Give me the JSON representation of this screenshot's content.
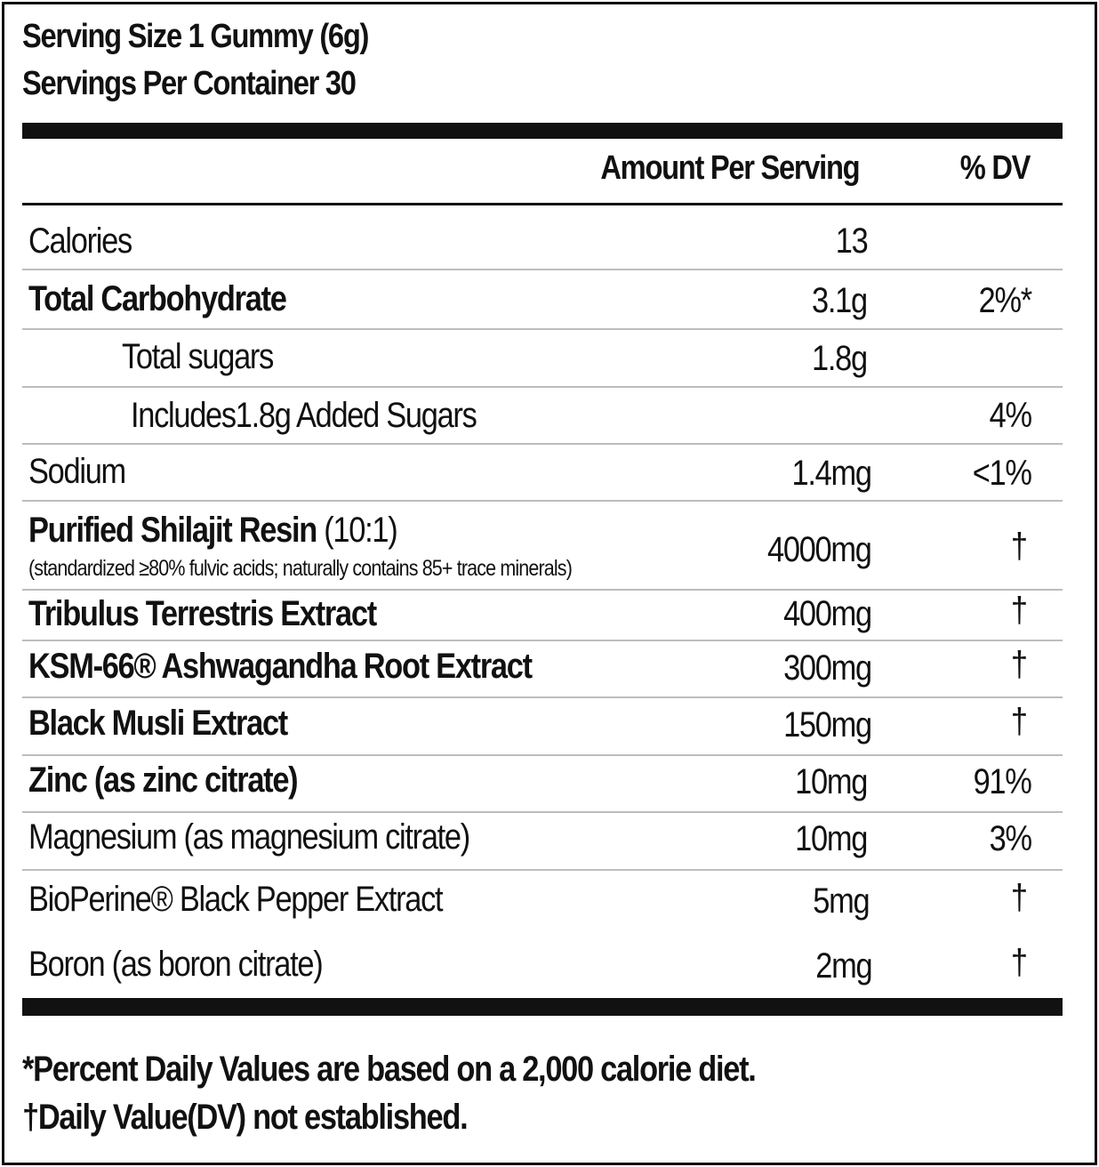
{
  "serving_size": "Serving Size 1 Gummy (6g)",
  "servings_per_container": "Servings Per Container 30",
  "header": {
    "amount": "Amount Per Serving",
    "dv": "% DV"
  },
  "rows": [
    {
      "name": "Calories",
      "amount": "13",
      "dv": "",
      "bold": false
    },
    {
      "name": "Total Carbohydrate",
      "amount": "3.1g",
      "dv": "2%*",
      "bold": true
    },
    {
      "name": "Total sugars",
      "amount": "1.8g",
      "dv": "",
      "bold": false
    },
    {
      "name": "Includes1.8g Added Sugars",
      "amount": "",
      "dv": "4%",
      "bold": false
    },
    {
      "name": "Sodium",
      "amount": "1.4mg",
      "dv": "<1%",
      "bold": false
    },
    {
      "name": "Purified Shilajit Resin",
      "name_suffix": "(10:1)",
      "note": "(standardized ≥80% fulvic acids; naturally contains 85+ trace minerals)",
      "amount": "4000mg",
      "dv": "†",
      "bold": true
    },
    {
      "name": "Tribulus Terrestris Extract",
      "amount": "400mg",
      "dv": "†",
      "bold": true
    },
    {
      "name": "KSM-66® Ashwagandha Root Extract",
      "amount": "300mg",
      "dv": "†",
      "bold": true
    },
    {
      "name": "Black Musli Extract",
      "amount": "150mg",
      "dv": "†",
      "bold": true
    },
    {
      "name": "Zinc (as zinc citrate)",
      "amount": "10mg",
      "dv": "91%",
      "bold": true
    },
    {
      "name": "Magnesium (as magnesium citrate)",
      "amount": "10mg",
      "dv": "3%",
      "bold": false
    },
    {
      "name": "BioPerine® Black Pepper Extract",
      "amount": "5mg",
      "dv": "†",
      "bold": false
    },
    {
      "name": "Boron (as boron citrate)",
      "amount": "2mg",
      "dv": "†",
      "bold": false
    }
  ],
  "footnotes": [
    "*Percent Daily Values are based on a 2,000 calorie diet.",
    "†Daily Value(DV) not established."
  ]
}
